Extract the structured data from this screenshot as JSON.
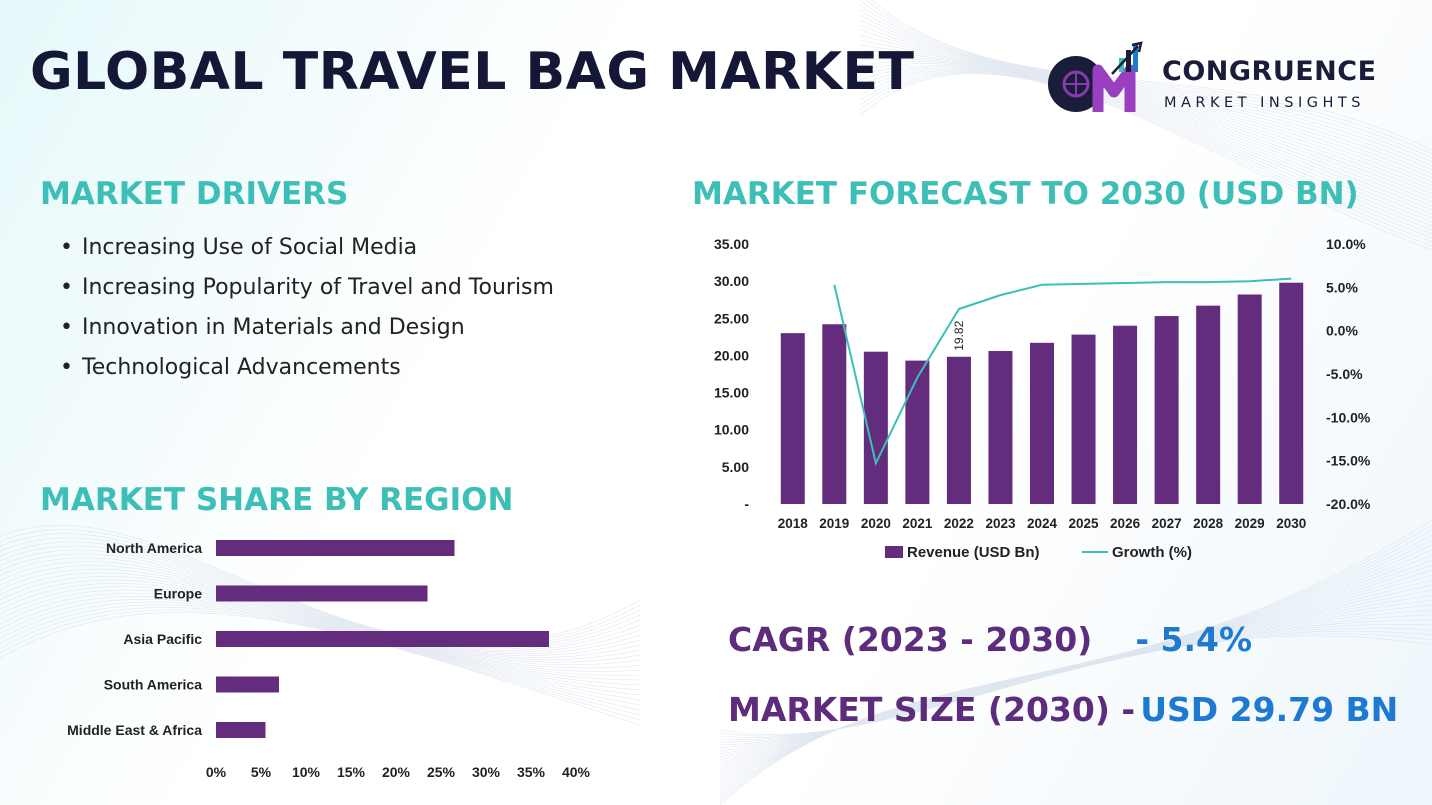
{
  "title": "GLOBAL TRAVEL BAG MARKET",
  "logo": {
    "line1": "CONGRUENCE",
    "line2": "MARKET INSIGHTS"
  },
  "drivers": {
    "title": "MARKET DRIVERS",
    "items": [
      "Increasing Use of Social Media",
      "Increasing Popularity of Travel and Tourism",
      "Innovation in Materials and Design",
      "Technological Advancements"
    ]
  },
  "region_section_title": "MARKET SHARE BY REGION",
  "forecast_section_title": "MARKET FORECAST TO 2030 (USD BN)",
  "stats": {
    "cagr_label": "CAGR (2023 - 2030)",
    "cagr_value": "- 5.4%",
    "size_label": "MARKET SIZE (2030) -",
    "size_value": "USD 29.79 BN"
  },
  "colors": {
    "bar": "#632c7c",
    "line": "#3dbfb8",
    "heading": "#3dbfb8",
    "stat_label": "#5e2c7d",
    "stat_value": "#1e7ad0"
  },
  "chart_data": [
    {
      "type": "bar",
      "orientation": "horizontal",
      "categories": [
        "North America",
        "Europe",
        "Asia Pacific",
        "South America",
        "Middle East & Africa"
      ],
      "values": [
        26.5,
        23.5,
        37,
        7,
        5.5
      ],
      "xticks": [
        "0%",
        "5%",
        "10%",
        "15%",
        "20%",
        "25%",
        "30%",
        "35%",
        "40%"
      ],
      "xlim": [
        0,
        40
      ]
    },
    {
      "type": "bar+line",
      "categories": [
        "2018",
        "2019",
        "2020",
        "2021",
        "2022",
        "2023",
        "2024",
        "2025",
        "2026",
        "2027",
        "2028",
        "2029",
        "2030"
      ],
      "series": [
        {
          "name": "Revenue (USD Bn)",
          "type": "bar",
          "axis": "left",
          "values": [
            23.0,
            24.2,
            20.5,
            19.3,
            19.82,
            20.6,
            21.7,
            22.8,
            24.0,
            25.3,
            26.7,
            28.2,
            29.79
          ]
        },
        {
          "name": "Growth (%)",
          "type": "line",
          "axis": "right",
          "values": [
            null,
            5.3,
            -15.3,
            -5.4,
            2.5,
            4.1,
            5.3,
            5.4,
            5.5,
            5.6,
            5.6,
            5.7,
            6.0
          ]
        }
      ],
      "data_labels": [
        {
          "category": "2022",
          "text": "19.82"
        }
      ],
      "y_left": {
        "lim": [
          0,
          35
        ],
        "ticks": [
          "-",
          "5.00",
          "10.00",
          "15.00",
          "20.00",
          "25.00",
          "30.00",
          "35.00"
        ]
      },
      "y_right": {
        "lim": [
          -20,
          10
        ],
        "ticks": [
          "-20.0%",
          "-15.0%",
          "-10.0%",
          "-5.0%",
          "0.0%",
          "5.0%",
          "10.0%"
        ]
      },
      "legend": "bottom"
    }
  ]
}
